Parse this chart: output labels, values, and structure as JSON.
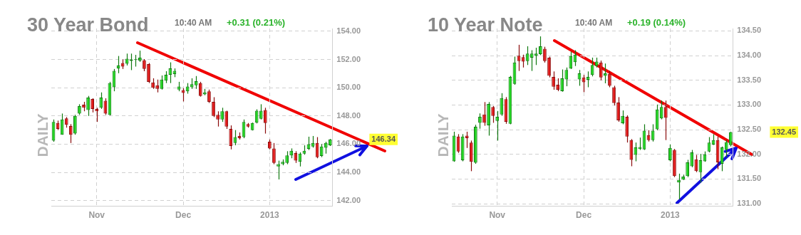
{
  "chart_data": [
    {
      "type": "candlestick",
      "title": "30 Year Bond",
      "subtitle": "10:40 AM",
      "categories": [
        null,
        null,
        null,
        null,
        null,
        null,
        null,
        null,
        null,
        null,
        "Nov",
        null,
        null,
        null,
        null,
        null,
        null,
        null,
        null,
        null,
        null,
        null,
        null,
        null,
        null,
        null,
        null,
        null,
        null,
        null,
        "Dec",
        null,
        null,
        null,
        null,
        null,
        null,
        null,
        null,
        null,
        null,
        null,
        null,
        null,
        null,
        null,
        null,
        null,
        null,
        null,
        "2013",
        null,
        null,
        null,
        null,
        null,
        null,
        null,
        null,
        null,
        null,
        null,
        null,
        null,
        null
      ],
      "ohlc": [
        [
          146.25,
          147.75,
          146.17,
          147.58
        ],
        [
          147.5,
          147.67,
          147.0,
          147.08
        ],
        [
          146.67,
          148.17,
          146.67,
          147.75
        ],
        [
          147.83,
          147.92,
          147.17,
          147.37
        ],
        [
          147.28,
          147.42,
          146.08,
          146.67
        ],
        [
          146.75,
          148.08,
          146.67,
          148.0
        ],
        [
          148.17,
          148.83,
          148.08,
          148.7
        ],
        [
          148.8,
          149.0,
          148.33,
          148.58
        ],
        [
          148.42,
          149.42,
          148.0,
          149.3
        ],
        [
          149.2,
          149.25,
          148.25,
          148.5
        ],
        [
          148.5,
          148.58,
          147.58,
          148.33
        ],
        [
          148.58,
          149.67,
          148.5,
          149.3
        ],
        [
          149.08,
          149.25,
          148.08,
          148.17
        ],
        [
          148.08,
          150.42,
          148.03,
          150.33
        ],
        [
          150.03,
          151.33,
          149.75,
          151.2
        ],
        [
          151.37,
          152.25,
          151.03,
          151.58
        ],
        [
          151.75,
          152.0,
          151.33,
          151.5
        ],
        [
          151.7,
          152.42,
          151.58,
          152.05
        ],
        [
          151.9,
          152.42,
          151.25,
          152.0
        ],
        [
          151.97,
          152.33,
          151.5,
          152.02
        ],
        [
          151.93,
          152.63,
          151.83,
          152.13
        ],
        [
          151.95,
          152.03,
          151.17,
          151.33
        ],
        [
          151.67,
          151.75,
          150.33,
          150.42
        ],
        [
          150.37,
          150.67,
          149.92,
          150.0
        ],
        [
          150.17,
          150.58,
          149.67,
          149.92
        ],
        [
          149.92,
          150.87,
          149.87,
          150.58
        ],
        [
          150.5,
          151.17,
          150.33,
          150.92
        ],
        [
          150.92,
          151.8,
          150.33,
          151.37
        ],
        [
          150.97,
          151.37,
          150.75,
          151.2
        ],
        [
          149.87,
          150.42,
          149.75,
          150.08
        ],
        [
          149.83,
          149.97,
          149.03,
          149.63
        ],
        [
          149.75,
          150.33,
          149.58,
          150.08
        ],
        [
          150.03,
          150.67,
          149.92,
          150.25
        ],
        [
          150.17,
          150.83,
          149.92,
          150.47
        ],
        [
          150.33,
          150.42,
          149.37,
          149.42
        ],
        [
          149.53,
          149.92,
          149.47,
          149.67
        ],
        [
          149.75,
          149.87,
          148.92,
          149.0
        ],
        [
          149.0,
          149.33,
          147.92,
          148.0
        ],
        [
          148.08,
          148.33,
          147.25,
          147.75
        ],
        [
          147.75,
          148.58,
          147.58,
          148.33
        ],
        [
          148.33,
          148.37,
          147.08,
          147.25
        ],
        [
          147.08,
          147.33,
          145.63,
          145.87
        ],
        [
          146.08,
          147.0,
          145.92,
          146.5
        ],
        [
          146.58,
          146.83,
          146.33,
          146.42
        ],
        [
          146.5,
          147.75,
          146.42,
          147.58
        ],
        [
          147.42,
          147.5,
          147.17,
          147.25
        ],
        [
          147.0,
          147.53,
          146.97,
          147.5
        ],
        [
          147.53,
          148.47,
          147.47,
          148.37
        ],
        [
          147.8,
          148.83,
          147.75,
          148.37
        ],
        [
          148.42,
          148.58,
          146.75,
          147.5
        ],
        [
          146.17,
          146.33,
          145.63,
          145.7
        ],
        [
          145.7,
          146.08,
          144.58,
          144.67
        ],
        [
          144.42,
          144.83,
          143.5,
          144.58
        ],
        [
          144.58,
          144.92,
          144.5,
          144.75
        ],
        [
          144.67,
          145.5,
          144.58,
          145.2
        ],
        [
          145.2,
          145.7,
          145.0,
          145.53
        ],
        [
          145.37,
          145.5,
          144.67,
          144.83
        ],
        [
          144.75,
          145.42,
          144.42,
          145.33
        ],
        [
          145.33,
          145.92,
          145.25,
          145.53
        ],
        [
          145.67,
          146.53,
          145.58,
          146.0
        ],
        [
          145.83,
          146.58,
          145.75,
          146.08
        ],
        [
          146.08,
          146.5,
          145.0,
          145.08
        ],
        [
          145.17,
          146.0,
          145.08,
          145.83
        ],
        [
          145.75,
          146.17,
          145.33,
          146.08
        ],
        [
          145.92,
          146.37,
          145.87,
          146.34
        ]
      ],
      "ylim": [
        141.6,
        154.2
      ],
      "yticks": [
        {
          "value": 142,
          "label": "142.00"
        },
        {
          "value": 144,
          "label": "144.00"
        },
        {
          "value": 146,
          "label": "146.00"
        },
        {
          "value": 148,
          "label": "148.00"
        },
        {
          "value": 150,
          "label": "150.00"
        },
        {
          "value": 152,
          "label": "152.00"
        },
        {
          "value": 154,
          "label": "154.00"
        }
      ],
      "grid": true,
      "annotations": [
        "+0.31 (0.21%)",
        "DAILY",
        "146.34"
      ]
    },
    {
      "type": "candlestick",
      "title": "10 Year Note",
      "subtitle": "10:40 AM",
      "categories": [
        null,
        null,
        null,
        null,
        null,
        null,
        null,
        null,
        null,
        null,
        "Nov",
        null,
        null,
        null,
        null,
        null,
        null,
        null,
        null,
        null,
        null,
        null,
        null,
        null,
        null,
        null,
        null,
        null,
        null,
        null,
        "Dec",
        null,
        null,
        null,
        null,
        null,
        null,
        null,
        null,
        null,
        null,
        null,
        null,
        null,
        null,
        null,
        null,
        null,
        null,
        null,
        "2013",
        null,
        null,
        null,
        null,
        null,
        null,
        null,
        null,
        null,
        null,
        null,
        null,
        null,
        null
      ],
      "ohlc": [
        [
          131.86,
          132.46,
          131.85,
          132.38
        ],
        [
          132.36,
          132.41,
          132.03,
          132.06
        ],
        [
          131.88,
          132.41,
          131.86,
          132.36
        ],
        [
          132.38,
          132.46,
          132.13,
          132.33
        ],
        [
          132.24,
          132.28,
          131.66,
          131.85
        ],
        [
          131.83,
          132.6,
          131.81,
          132.56
        ],
        [
          132.64,
          132.83,
          132.52,
          132.76
        ],
        [
          132.81,
          133.06,
          132.58,
          132.64
        ],
        [
          132.59,
          133.06,
          132.38,
          133.02
        ],
        [
          132.96,
          132.98,
          132.64,
          132.78
        ],
        [
          132.68,
          132.88,
          132.28,
          132.76
        ],
        [
          132.81,
          133.24,
          132.78,
          133.14
        ],
        [
          133.12,
          133.16,
          132.62,
          132.66
        ],
        [
          132.62,
          133.59,
          132.61,
          133.57
        ],
        [
          133.43,
          133.98,
          133.41,
          133.86
        ],
        [
          134.0,
          134.22,
          133.69,
          133.89
        ],
        [
          133.97,
          134.02,
          133.76,
          133.88
        ],
        [
          133.89,
          134.19,
          133.81,
          134.04
        ],
        [
          133.96,
          134.11,
          133.69,
          134.04
        ],
        [
          134.0,
          134.16,
          133.81,
          134.04
        ],
        [
          134.03,
          134.39,
          134.01,
          134.19
        ],
        [
          134.14,
          134.18,
          133.86,
          133.89
        ],
        [
          133.96,
          133.98,
          133.56,
          133.59
        ],
        [
          133.57,
          133.68,
          133.31,
          133.37
        ],
        [
          133.41,
          133.54,
          133.28,
          133.31
        ],
        [
          133.28,
          133.72,
          133.27,
          133.54
        ],
        [
          133.52,
          133.76,
          133.38,
          133.71
        ],
        [
          133.74,
          134.08,
          133.73,
          133.99
        ],
        [
          133.87,
          134.11,
          133.79,
          134.02
        ],
        [
          133.52,
          133.71,
          133.39,
          133.64
        ],
        [
          133.56,
          133.61,
          133.26,
          133.46
        ],
        [
          133.51,
          133.68,
          133.36,
          133.57
        ],
        [
          133.61,
          133.96,
          133.58,
          133.81
        ],
        [
          133.79,
          133.96,
          133.76,
          133.88
        ],
        [
          133.86,
          133.9,
          133.5,
          133.56
        ],
        [
          133.59,
          133.84,
          133.44,
          133.64
        ],
        [
          133.63,
          133.69,
          133.36,
          133.39
        ],
        [
          133.36,
          133.39,
          132.99,
          133.04
        ],
        [
          133.05,
          133.16,
          132.66,
          132.69
        ],
        [
          132.63,
          132.89,
          132.61,
          132.78
        ],
        [
          132.76,
          132.79,
          132.24,
          132.36
        ],
        [
          132.29,
          132.31,
          131.76,
          131.89
        ],
        [
          131.99,
          132.24,
          131.86,
          132.14
        ],
        [
          132.11,
          132.34,
          132.09,
          132.15
        ],
        [
          132.1,
          132.61,
          132.09,
          132.48
        ],
        [
          132.39,
          132.49,
          132.26,
          132.29
        ],
        [
          132.29,
          132.61,
          132.26,
          132.48
        ],
        [
          132.51,
          133.01,
          132.49,
          132.91
        ],
        [
          132.73,
          133.09,
          132.71,
          132.96
        ],
        [
          132.96,
          133.09,
          132.29,
          132.74
        ],
        [
          131.88,
          132.2,
          131.86,
          132.13
        ],
        [
          132.09,
          132.11,
          131.54,
          131.56
        ],
        [
          131.43,
          131.61,
          131.09,
          131.48
        ],
        [
          131.49,
          131.59,
          131.48,
          131.55
        ],
        [
          131.56,
          131.89,
          131.54,
          131.84
        ],
        [
          131.76,
          132.09,
          131.74,
          132.04
        ],
        [
          131.9,
          131.99,
          131.64,
          131.66
        ],
        [
          131.64,
          132.01,
          131.43,
          131.88
        ],
        [
          131.86,
          132.06,
          131.85,
          132.0
        ],
        [
          132.06,
          132.35,
          132.04,
          132.24
        ],
        [
          132.2,
          132.41,
          132.19,
          132.29
        ],
        [
          132.29,
          132.36,
          131.7,
          131.84
        ],
        [
          131.81,
          132.16,
          131.66,
          132.14
        ],
        [
          132.09,
          132.29,
          131.94,
          132.25
        ],
        [
          132.19,
          132.46,
          132.16,
          132.45
        ]
      ],
      "ylim": [
        130.95,
        134.55
      ],
      "yticks": [
        {
          "value": 131,
          "label": "131.00"
        },
        {
          "value": 131.5,
          "label": "131.50"
        },
        {
          "value": 132,
          "label": "132.00"
        },
        {
          "value": 132.5,
          "label": "132.50"
        },
        {
          "value": 133,
          "label": "133.00"
        },
        {
          "value": 133.5,
          "label": "133.50"
        },
        {
          "value": 134,
          "label": "134.00"
        },
        {
          "value": 134.5,
          "label": "134.50"
        }
      ],
      "grid": true,
      "annotations": [
        "+0.19 (0.14%)",
        "DAILY",
        "132.45"
      ]
    }
  ]
}
